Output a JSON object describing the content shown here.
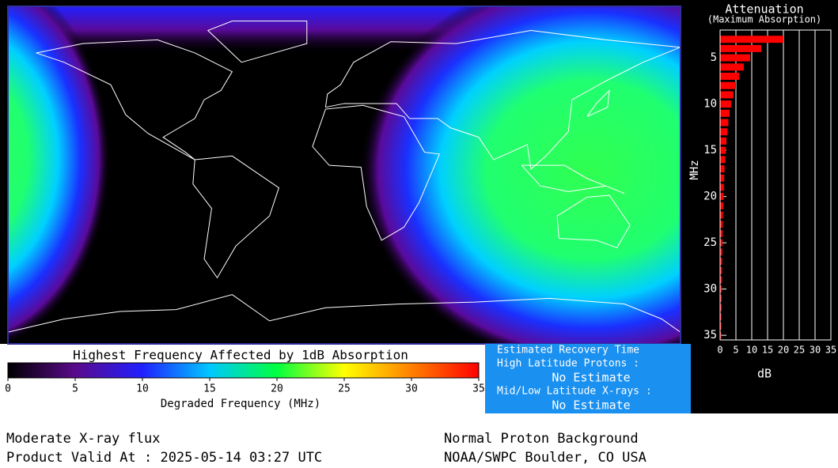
{
  "chart_data": [
    {
      "type": "colorbar",
      "title": "Highest Frequency Affected by 1dB Absorption",
      "xlabel": "Degraded Frequency (MHz)",
      "xlim": [
        0,
        35
      ],
      "xticks": [
        0,
        5,
        10,
        15,
        20,
        25,
        30,
        35
      ],
      "colors": [
        "#000000",
        "#5a0a8a",
        "#2020ff",
        "#00c8ff",
        "#00ff40",
        "#ffff00",
        "#ff8000",
        "#ff0000"
      ]
    },
    {
      "type": "bar",
      "title": "Attenuation",
      "subtitle": "(Maximum Absorption)",
      "xlabel": "dB",
      "ylabel": "MHz",
      "y": [
        3,
        4,
        5,
        6,
        7,
        8,
        9,
        10,
        11,
        12,
        13,
        14,
        15,
        16,
        17,
        18,
        19,
        20,
        21,
        22,
        23,
        24,
        25,
        26,
        27,
        28,
        29,
        30,
        31,
        32,
        33,
        34,
        35
      ],
      "values": [
        20,
        13,
        9.5,
        7.5,
        6,
        5,
        4.2,
        3.5,
        3,
        2.6,
        2.3,
        2,
        1.8,
        1.6,
        1.4,
        1.3,
        1.2,
        1.1,
        1,
        0.9,
        0.85,
        0.8,
        0.75,
        0.7,
        0.65,
        0.6,
        0.6,
        0.55,
        0.5,
        0.5,
        0.45,
        0.45,
        0.4
      ],
      "color": "#ff0000",
      "xlim": [
        0,
        35
      ],
      "xticks": [
        0,
        5,
        10,
        15,
        20,
        25,
        30,
        35
      ],
      "ylim": [
        2,
        35.5
      ],
      "yticks": [
        5,
        10,
        15,
        20,
        25,
        30,
        35
      ],
      "grid": true
    }
  ],
  "recovery": {
    "title": "Estimated Recovery Time",
    "high_label": "High Latitude Protons :",
    "high_value": "No Estimate",
    "low_label": "Mid/Low Latitude X-rays :",
    "low_value": "No Estimate"
  },
  "footer": {
    "left_1": "Moderate X-ray flux",
    "left_2": "Product Valid At : 2025-05-14 03:27 UTC",
    "right_1": "Normal Proton Background",
    "right_2": "NOAA/SWPC Boulder, CO USA"
  }
}
